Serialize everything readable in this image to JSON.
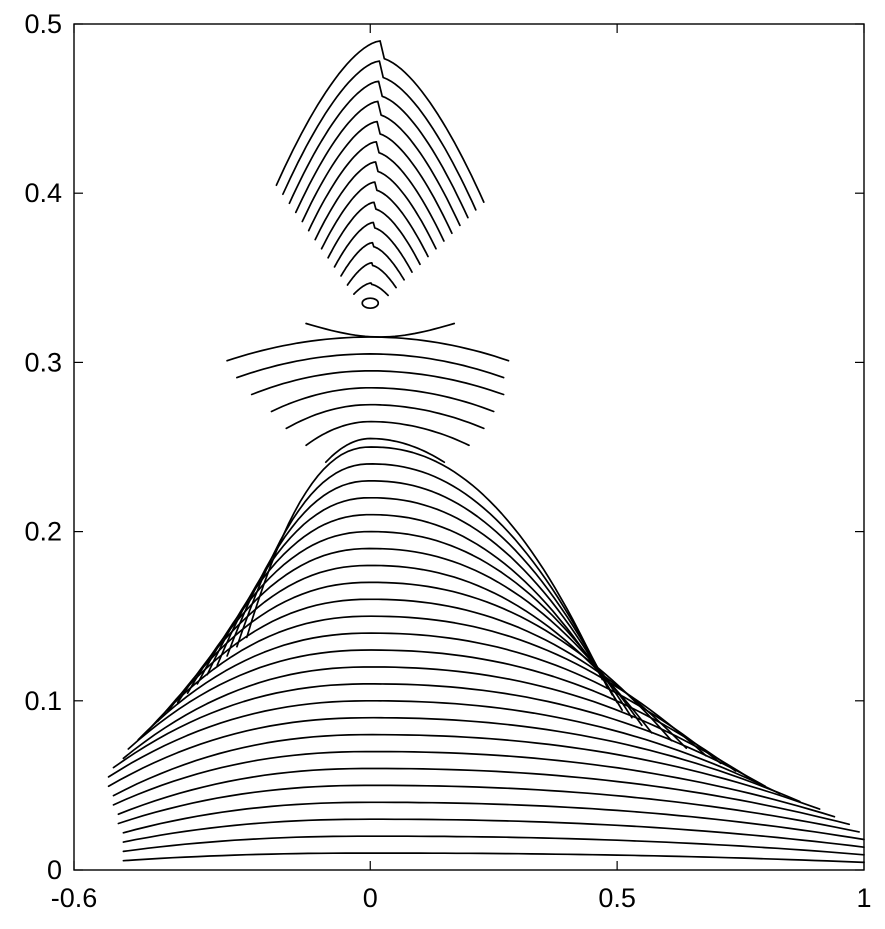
{
  "chart_data": {
    "type": "line",
    "title": "",
    "xlabel": "",
    "ylabel": "",
    "xlim": [
      -0.6,
      1
    ],
    "ylim": [
      0,
      0.5
    ],
    "grid": false,
    "legend": "none",
    "x_ticks": [
      {
        "value": -0.6,
        "label": "-0.6"
      },
      {
        "value": 0,
        "label": "0"
      },
      {
        "value": 0.5,
        "label": "0.5"
      },
      {
        "value": 1,
        "label": "1"
      }
    ],
    "y_ticks": [
      {
        "value": 0,
        "label": "0"
      },
      {
        "value": 0.1,
        "label": "0.1"
      },
      {
        "value": 0.2,
        "label": "0.2"
      },
      {
        "value": 0.3,
        "label": "0.3"
      },
      {
        "value": 0.4,
        "label": "0.4"
      },
      {
        "value": 0.5,
        "label": "0.5"
      }
    ],
    "lower_family": {
      "description_note": "arcs peaking at x=0",
      "levels": [
        0.01,
        0.02,
        0.03,
        0.04,
        0.05,
        0.06,
        0.07,
        0.08,
        0.09,
        0.1,
        0.11,
        0.12,
        0.13,
        0.14,
        0.15,
        0.16,
        0.17,
        0.18,
        0.19,
        0.2,
        0.21,
        0.22,
        0.23,
        0.24,
        0.25
      ],
      "x_left": [
        -0.5,
        -0.5,
        -0.5,
        -0.5,
        -0.51,
        -0.51,
        -0.52,
        -0.52,
        -0.53,
        -0.53,
        -0.52,
        -0.5,
        -0.49,
        -0.47,
        -0.45,
        -0.43,
        -0.41,
        -0.39,
        -0.37,
        -0.35,
        -0.33,
        -0.31,
        -0.29,
        -0.27,
        -0.25
      ],
      "x_right": [
        1.0,
        1.0,
        1.0,
        1.0,
        0.99,
        0.97,
        0.94,
        0.91,
        0.87,
        0.83,
        0.8,
        0.77,
        0.74,
        0.71,
        0.68,
        0.64,
        0.61,
        0.57,
        0.55,
        0.53,
        0.51,
        0.5,
        0.49,
        0.48,
        0.47
      ]
    },
    "middle_family": {
      "levels": [
        0.255,
        0.265,
        0.275,
        0.285,
        0.295,
        0.305,
        0.315
      ],
      "x_left": [
        -0.09,
        -0.13,
        -0.17,
        -0.2,
        -0.24,
        -0.27,
        -0.29
      ],
      "x_right": [
        0.15,
        0.2,
        0.23,
        0.25,
        0.27,
        0.27,
        0.28
      ]
    },
    "spiral": {
      "center_x": 0,
      "center_y": 0.335,
      "upper_boundary_peak_y": 0.49,
      "x_range": [
        -0.13,
        0.2
      ]
    }
  }
}
